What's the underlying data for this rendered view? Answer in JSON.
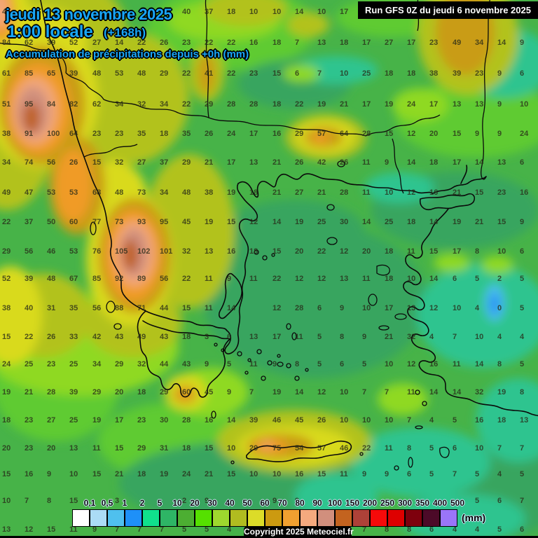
{
  "header": {
    "date_line": "jeudi 13 novembre 2025",
    "time_line": "1:00 locale",
    "offset": "(+168h)",
    "subtitle": "Accumulation de précipitations depuis +0h (mm)",
    "run_info": "Run GFS 0Z du jeudi 6 novembre 2025",
    "accent_color": "#18a6f8"
  },
  "footer": {
    "copyright": "Copyright 2025 Meteociel.fr"
  },
  "legend": {
    "unit": "(mm)",
    "labels": [
      "0,1",
      "0,5",
      "1",
      "2",
      "5",
      "10",
      "20",
      "30",
      "40",
      "50",
      "60",
      "70",
      "80",
      "90",
      "100",
      "150",
      "200",
      "250",
      "300",
      "350",
      "400",
      "500"
    ],
    "colors": [
      "#ffffff",
      "#abdcf6",
      "#4fc0ee",
      "#1e90f8",
      "#10e18c",
      "#2eb565",
      "#4cae32",
      "#55e000",
      "#9ed82e",
      "#b0bc20",
      "#dcdc28",
      "#cc9a10",
      "#f0a030",
      "#f4a97e",
      "#d18f7d",
      "#c3631f",
      "#ae4138",
      "#f60a0a",
      "#de0000",
      "#7e000d",
      "#4c0a28",
      "#9a75f9"
    ]
  },
  "grid": {
    "description": "precipitation values (mm) at model grid points, rows top to bottom",
    "rows": [
      [
        "45",
        "",
        "",
        "",
        "",
        "",
        "",
        "8",
        "40",
        "37",
        "18",
        "10",
        "10",
        "14",
        "10",
        "17",
        "",
        "",
        "",
        "",
        "",
        "",
        "",
        ""
      ],
      [
        "84",
        "62",
        "39",
        "52",
        "27",
        "14",
        "22",
        "26",
        "23",
        "22",
        "22",
        "16",
        "18",
        "7",
        "13",
        "18",
        "17",
        "27",
        "17",
        "23",
        "49",
        "34",
        "14",
        "9"
      ],
      [
        "61",
        "85",
        "65",
        "39",
        "48",
        "53",
        "48",
        "29",
        "22",
        "41",
        "22",
        "23",
        "15",
        "6",
        "7",
        "10",
        "25",
        "18",
        "18",
        "38",
        "39",
        "23",
        "9",
        "6"
      ],
      [
        "51",
        "95",
        "84",
        "82",
        "62",
        "34",
        "32",
        "34",
        "22",
        "29",
        "28",
        "28",
        "18",
        "22",
        "19",
        "21",
        "17",
        "19",
        "24",
        "17",
        "13",
        "13",
        "9",
        "10"
      ],
      [
        "38",
        "91",
        "100",
        "64",
        "23",
        "23",
        "35",
        "18",
        "35",
        "26",
        "24",
        "17",
        "16",
        "29",
        "57",
        "64",
        "28",
        "15",
        "12",
        "20",
        "15",
        "9",
        "9",
        "24"
      ],
      [
        "34",
        "74",
        "56",
        "26",
        "15",
        "32",
        "27",
        "37",
        "29",
        "21",
        "17",
        "13",
        "21",
        "26",
        "42",
        "26",
        "11",
        "9",
        "14",
        "18",
        "17",
        "14",
        "13",
        "6"
      ],
      [
        "49",
        "47",
        "53",
        "53",
        "68",
        "48",
        "73",
        "34",
        "48",
        "38",
        "19",
        "18",
        "21",
        "27",
        "21",
        "28",
        "11",
        "10",
        "12",
        "16",
        "21",
        "15",
        "23",
        "16"
      ],
      [
        "22",
        "37",
        "50",
        "60",
        "77",
        "73",
        "93",
        "95",
        "45",
        "19",
        "15",
        "12",
        "14",
        "19",
        "25",
        "30",
        "14",
        "25",
        "18",
        "14",
        "19",
        "21",
        "15",
        "9"
      ],
      [
        "29",
        "56",
        "46",
        "53",
        "76",
        "105",
        "102",
        "101",
        "32",
        "13",
        "16",
        "18",
        "15",
        "20",
        "22",
        "12",
        "20",
        "18",
        "11",
        "15",
        "17",
        "8",
        "10",
        "6"
      ],
      [
        "52",
        "39",
        "48",
        "67",
        "85",
        "92",
        "89",
        "56",
        "22",
        "11",
        "9",
        "11",
        "22",
        "12",
        "12",
        "13",
        "11",
        "18",
        "10",
        "14",
        "6",
        "5",
        "2",
        "5"
      ],
      [
        "38",
        "40",
        "31",
        "35",
        "56",
        "88",
        "71",
        "44",
        "15",
        "11",
        "14",
        "",
        "12",
        "28",
        "6",
        "9",
        "10",
        "17",
        "13",
        "12",
        "10",
        "4",
        "0",
        "5"
      ],
      [
        "15",
        "22",
        "26",
        "33",
        "42",
        "43",
        "49",
        "43",
        "18",
        "3",
        "6",
        "13",
        "17",
        "11",
        "5",
        "8",
        "9",
        "21",
        "32",
        "4",
        "7",
        "10",
        "4",
        "4"
      ],
      [
        "24",
        "25",
        "23",
        "25",
        "34",
        "29",
        "32",
        "44",
        "43",
        "9",
        "5",
        "11",
        "9",
        "8",
        "5",
        "6",
        "5",
        "10",
        "12",
        "16",
        "11",
        "14",
        "8",
        "5"
      ],
      [
        "19",
        "21",
        "28",
        "39",
        "29",
        "20",
        "18",
        "29",
        "60",
        "45",
        "9",
        "7",
        "19",
        "14",
        "12",
        "10",
        "7",
        "7",
        "11",
        "14",
        "14",
        "32",
        "19",
        "8"
      ],
      [
        "18",
        "23",
        "27",
        "25",
        "19",
        "17",
        "23",
        "30",
        "28",
        "16",
        "14",
        "39",
        "46",
        "45",
        "26",
        "10",
        "10",
        "10",
        "7",
        "4",
        "5",
        "16",
        "18",
        "13"
      ],
      [
        "20",
        "23",
        "20",
        "13",
        "11",
        "15",
        "29",
        "31",
        "18",
        "15",
        "10",
        "29",
        "75",
        "54",
        "57",
        "46",
        "22",
        "11",
        "8",
        "5",
        "6",
        "10",
        "7",
        "7"
      ],
      [
        "15",
        "16",
        "9",
        "10",
        "15",
        "21",
        "18",
        "19",
        "24",
        "21",
        "15",
        "10",
        "10",
        "16",
        "15",
        "11",
        "9",
        "9",
        "6",
        "5",
        "7",
        "5",
        "4",
        "5"
      ],
      [
        "10",
        "7",
        "8",
        "15",
        "",
        "3",
        "",
        "",
        "2",
        "9",
        "",
        "",
        "9",
        "9",
        "",
        "",
        "",
        "",
        "",
        "",
        "",
        "5",
        "6",
        "7"
      ],
      [
        "13",
        "12",
        "15",
        "11",
        "9",
        "7",
        "7",
        "7",
        "5",
        "5",
        "4",
        "",
        "",
        "",
        "",
        "",
        "7",
        "8",
        "8",
        "6",
        "4",
        "4",
        "5",
        "6"
      ]
    ]
  }
}
